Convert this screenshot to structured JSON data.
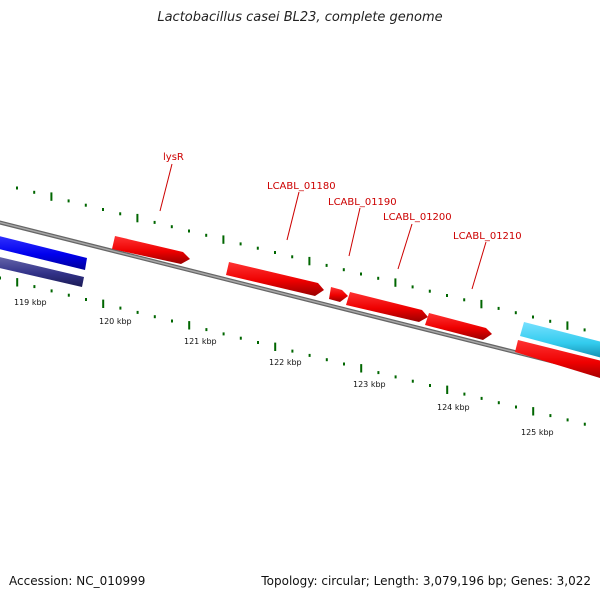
{
  "header": {
    "title": "Lactobacillus casei BL23, complete genome"
  },
  "footer": {
    "accession": "Accession: NC_010999",
    "summary": "Topology: circular; Length: 3,079,196 bp; Genes: 3,022"
  },
  "colors": {
    "reverse_gene": "#0000ee",
    "reverse_gene_alt": "#33338a",
    "forward_gene": "#ee0000",
    "forward_gene_cyan": "#33ccee",
    "label": "#cc0000",
    "tick": "#006600",
    "backbone": "#808080"
  },
  "scale_labels": [
    "119 kbp",
    "120 kbp",
    "121 kbp",
    "122 kbp",
    "123 kbp",
    "124 kbp",
    "125 kbp"
  ],
  "gene_labels": [
    "lysR",
    "LCABL_01180",
    "LCABL_01190",
    "LCABL_01200",
    "LCABL_01210"
  ]
}
